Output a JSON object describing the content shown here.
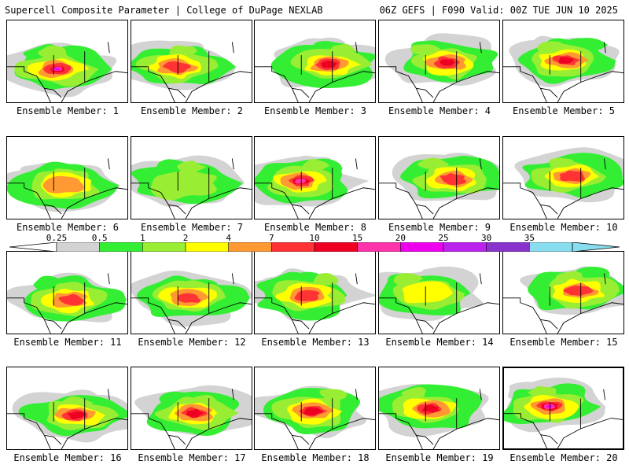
{
  "header": {
    "title_left": "Supercell Composite Parameter | College of DuPage NEXLAB",
    "title_right": "06Z GEFS | F090 Valid: 00Z TUE JUN 10 2025"
  },
  "member_prefix": "Ensemble Member: ",
  "members": [
    {
      "label": "Ensemble Member: 1",
      "intensity": 9,
      "selected": false
    },
    {
      "label": "Ensemble Member: 2",
      "intensity": 6,
      "selected": false
    },
    {
      "label": "Ensemble Member: 3",
      "intensity": 7,
      "selected": false
    },
    {
      "label": "Ensemble Member: 4",
      "intensity": 7,
      "selected": false
    },
    {
      "label": "Ensemble Member: 5",
      "intensity": 7,
      "selected": false
    },
    {
      "label": "Ensemble Member: 6",
      "intensity": 5,
      "selected": false
    },
    {
      "label": "Ensemble Member: 7",
      "intensity": 3,
      "selected": false
    },
    {
      "label": "Ensemble Member: 8",
      "intensity": 8,
      "selected": false
    },
    {
      "label": "Ensemble Member: 9",
      "intensity": 6,
      "selected": false
    },
    {
      "label": "Ensemble Member: 10",
      "intensity": 6,
      "selected": false
    },
    {
      "label": "Ensemble Member: 11",
      "intensity": 6,
      "selected": false
    },
    {
      "label": "Ensemble Member: 12",
      "intensity": 6,
      "selected": false
    },
    {
      "label": "Ensemble Member: 13",
      "intensity": 6,
      "selected": false
    },
    {
      "label": "Ensemble Member: 14",
      "intensity": 4,
      "selected": false
    },
    {
      "label": "Ensemble Member: 15",
      "intensity": 6,
      "selected": false
    },
    {
      "label": "Ensemble Member: 16",
      "intensity": 7,
      "selected": false
    },
    {
      "label": "Ensemble Member: 17",
      "intensity": 7,
      "selected": false
    },
    {
      "label": "Ensemble Member: 18",
      "intensity": 7,
      "selected": false
    },
    {
      "label": "Ensemble Member: 19",
      "intensity": 7,
      "selected": false
    },
    {
      "label": "Ensemble Member: 20",
      "intensity": 9,
      "selected": true
    }
  ],
  "colorbar": {
    "ticks": [
      "0.25",
      "0.5",
      "1",
      "2",
      "4",
      "7",
      "10",
      "15",
      "20",
      "25",
      "30",
      "35"
    ],
    "colors": [
      "#d3d3d3",
      "#33ee33",
      "#99ee33",
      "#ffff00",
      "#ff9933",
      "#ff3333",
      "#ee0022",
      "#ff33aa",
      "#ee00ee",
      "#bb22ee",
      "#8833cc",
      "#88ddee"
    ]
  }
}
